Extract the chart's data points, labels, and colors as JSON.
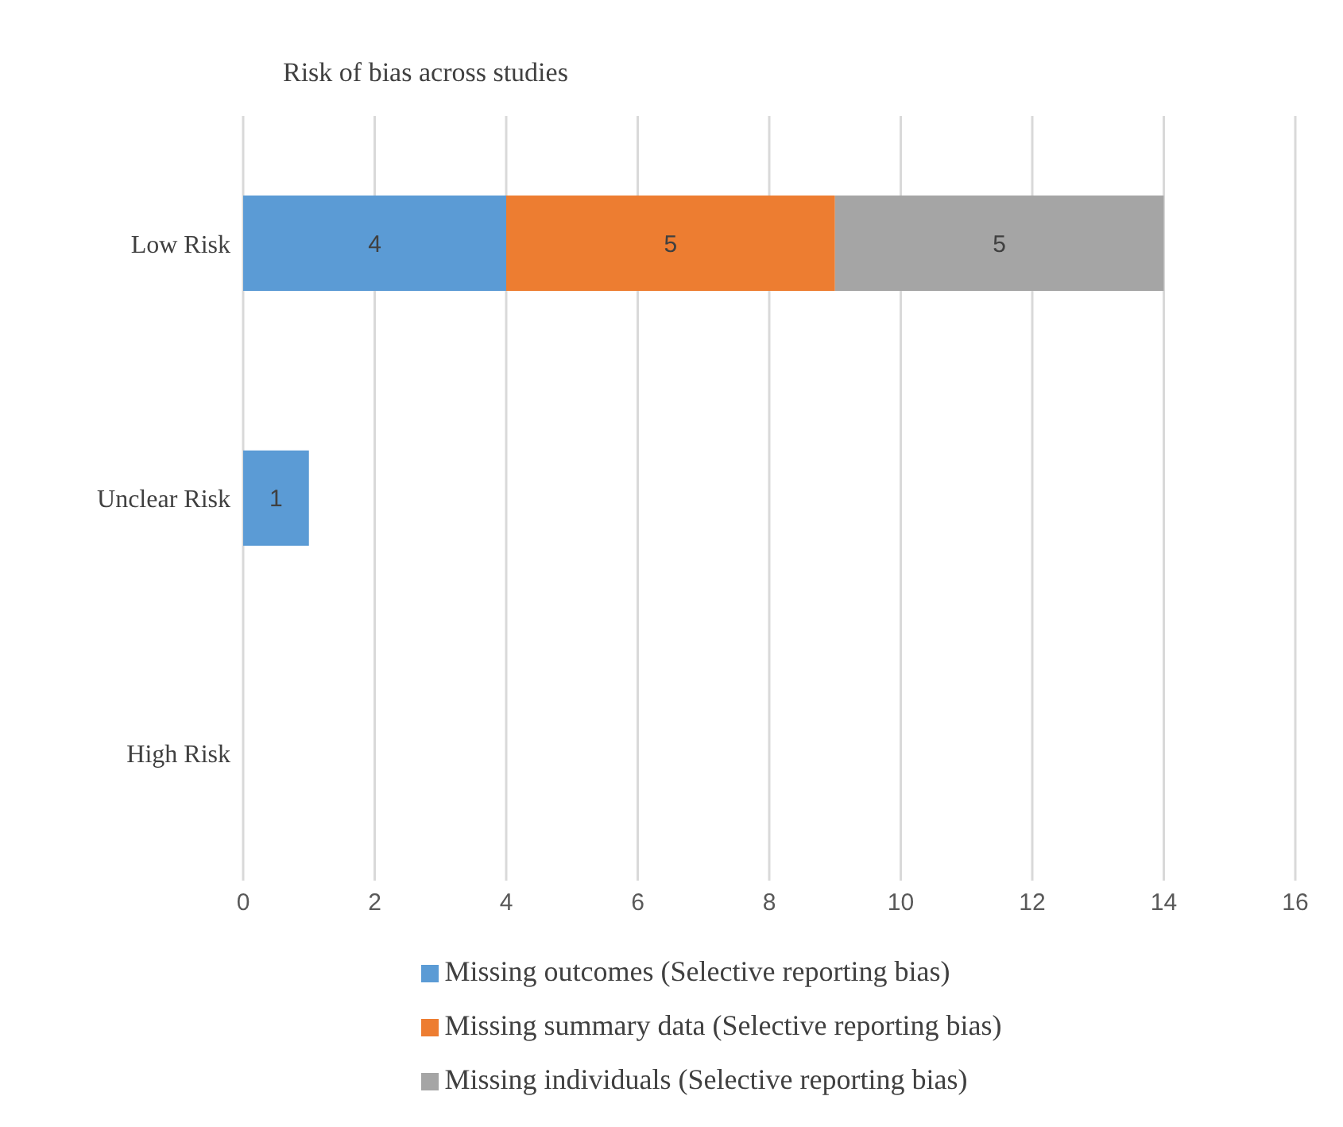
{
  "chart_data": {
    "type": "bar",
    "title": "Risk of bias across studies",
    "orientation": "horizontal",
    "stacked": true,
    "categories": [
      "Low Risk",
      "Unclear Risk",
      "High Risk"
    ],
    "series": [
      {
        "name": "Missing outcomes (Selective reporting bias)",
        "color": "#5b9bd5",
        "values": [
          4,
          1,
          null
        ]
      },
      {
        "name": "Missing summary data (Selective reporting bias)",
        "color": "#ed7d31",
        "values": [
          5,
          null,
          null
        ]
      },
      {
        "name": "Missing individuals (Selective reporting bias)",
        "color": "#a5a5a5",
        "values": [
          5,
          null,
          null
        ]
      }
    ],
    "xlim": [
      0,
      16
    ],
    "xticks": [
      0,
      2,
      4,
      6,
      8,
      10,
      12,
      14,
      16
    ],
    "grid": "x",
    "legend": "bottom",
    "data_labels": true
  }
}
